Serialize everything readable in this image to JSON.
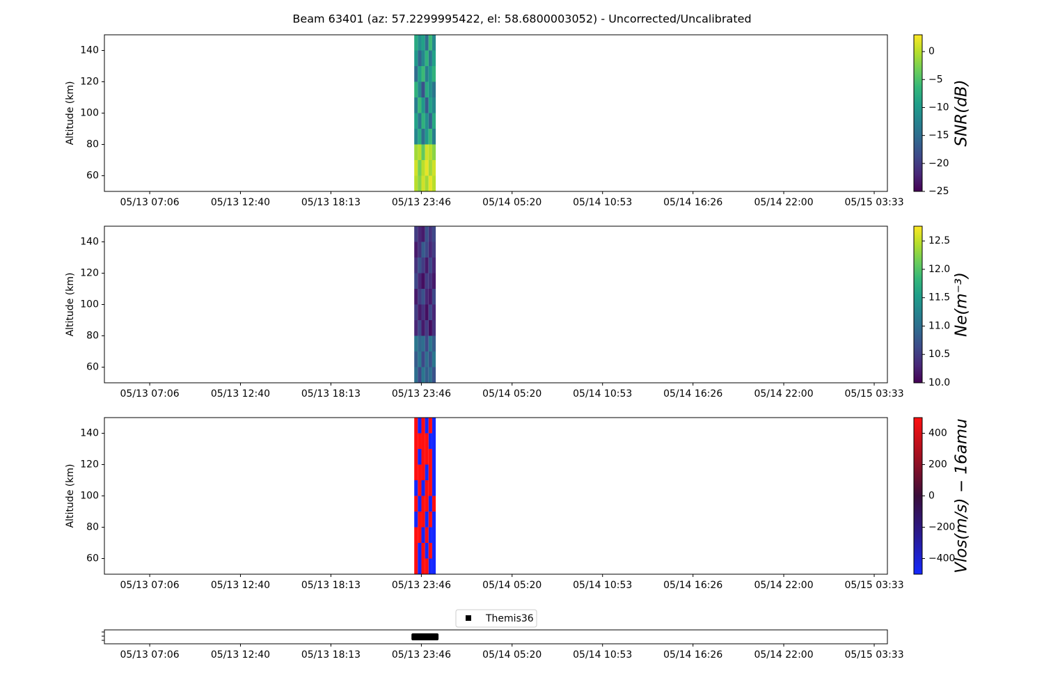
{
  "title": "Beam 63401 (az: 57.2299995422, el: 58.6800003052) - Uncorrected/Uncalibrated",
  "chart_data": [
    {
      "type": "heatmap",
      "ylabel": "Altitude (km)",
      "colorbar_label": "SNR(dB)",
      "colormap": [
        "#440154",
        "#482878",
        "#3e4989",
        "#31688e",
        "#26828e",
        "#1f9e89",
        "#35b779",
        "#6ece58",
        "#b5de2b",
        "#fde725"
      ],
      "xlim": [
        4.32,
        52.36
      ],
      "xticks": [
        {
          "value": 7.1,
          "label": "05/13 07:06"
        },
        {
          "value": 12.667,
          "label": "05/13 12:40"
        },
        {
          "value": 18.217,
          "label": "05/13 18:13"
        },
        {
          "value": 23.767,
          "label": "05/13 23:46"
        },
        {
          "value": 29.333,
          "label": "05/14 05:20"
        },
        {
          "value": 34.883,
          "label": "05/14 10:53"
        },
        {
          "value": 40.433,
          "label": "05/14 16:26"
        },
        {
          "value": 46.0,
          "label": "05/14 22:00"
        },
        {
          "value": 51.55,
          "label": "05/15 03:33"
        }
      ],
      "ylim": [
        50,
        150
      ],
      "yticks": [
        60,
        80,
        100,
        120,
        140
      ],
      "clim": [
        -25,
        3
      ],
      "cticks": [
        {
          "value": 0,
          "label": "0"
        },
        {
          "value": -5,
          "label": "−5"
        },
        {
          "value": -10,
          "label": "−10"
        },
        {
          "value": -15,
          "label": "−15"
        },
        {
          "value": -20,
          "label": "−20"
        },
        {
          "value": -25,
          "label": "−25"
        }
      ],
      "x": [
        23.33,
        23.55,
        23.77,
        23.99,
        24.21,
        24.43,
        24.65
      ],
      "y": [
        50,
        60,
        70,
        80,
        90,
        100,
        110,
        120,
        130,
        140,
        150
      ],
      "z": [
        [
          0,
          -2,
          1,
          -1,
          2,
          0
        ],
        [
          1,
          -3,
          0,
          2,
          -1,
          1
        ],
        [
          -1,
          0,
          -4,
          1,
          0,
          -2
        ],
        [
          -12,
          -8,
          -15,
          -10,
          -6,
          -13
        ],
        [
          -9,
          -14,
          -7,
          -11,
          -16,
          -8
        ],
        [
          -13,
          -6,
          -10,
          -17,
          -9,
          -12
        ],
        [
          -7,
          -12,
          -18,
          -8,
          -11,
          -14
        ],
        [
          -15,
          -9,
          -6,
          -13,
          -10,
          -7
        ],
        [
          -10,
          -16,
          -12,
          -7,
          -14,
          -9
        ],
        [
          -8,
          -11,
          -9,
          -15,
          -6,
          -12
        ]
      ]
    },
    {
      "type": "heatmap",
      "ylabel": "Altitude (km)",
      "colorbar_label": "Ne(m⁻³)",
      "colormap": [
        "#440154",
        "#482878",
        "#3e4989",
        "#31688e",
        "#26828e",
        "#1f9e89",
        "#35b779",
        "#6ece58",
        "#b5de2b",
        "#fde725"
      ],
      "xlim": [
        4.32,
        52.36
      ],
      "xticks": [
        {
          "value": 7.1,
          "label": "05/13 07:06"
        },
        {
          "value": 12.667,
          "label": "05/13 12:40"
        },
        {
          "value": 18.217,
          "label": "05/13 18:13"
        },
        {
          "value": 23.767,
          "label": "05/13 23:46"
        },
        {
          "value": 29.333,
          "label": "05/14 05:20"
        },
        {
          "value": 34.883,
          "label": "05/14 10:53"
        },
        {
          "value": 40.433,
          "label": "05/14 16:26"
        },
        {
          "value": 46.0,
          "label": "05/14 22:00"
        },
        {
          "value": 51.55,
          "label": "05/15 03:33"
        }
      ],
      "ylim": [
        50,
        150
      ],
      "yticks": [
        60,
        80,
        100,
        120,
        140
      ],
      "clim": [
        10.0,
        12.76
      ],
      "cticks": [
        {
          "value": 10,
          "label": "10.0"
        },
        10.5,
        {
          "value": 11,
          "label": "11.0"
        },
        11.5,
        {
          "value": 12,
          "label": "12.0"
        },
        12.5
      ],
      "x": [
        23.33,
        23.55,
        23.77,
        23.99,
        24.21,
        24.43,
        24.65
      ],
      "y": [
        50,
        60,
        70,
        80,
        90,
        100,
        110,
        120,
        130,
        140,
        150
      ],
      "z": [
        [
          11.0,
          10.6,
          11.1,
          10.8,
          11.0,
          10.7
        ],
        [
          10.8,
          11.1,
          10.6,
          11.0,
          10.7,
          11.1
        ],
        [
          11.1,
          10.9,
          11.0,
          10.6,
          11.1,
          10.8
        ],
        [
          10.3,
          10.6,
          10.2,
          10.5,
          10.1,
          10.4
        ],
        [
          10.5,
          10.2,
          10.4,
          10.1,
          10.6,
          10.3
        ],
        [
          10.2,
          10.5,
          10.7,
          10.3,
          10.2,
          10.6
        ],
        [
          10.6,
          10.3,
          10.1,
          10.5,
          10.4,
          10.2
        ],
        [
          10.4,
          10.7,
          10.5,
          10.2,
          10.6,
          10.3
        ],
        [
          10.2,
          10.4,
          10.8,
          10.6,
          10.3,
          10.5
        ],
        [
          10.5,
          10.3,
          10.2,
          10.7,
          10.4,
          10.6
        ]
      ]
    },
    {
      "type": "heatmap",
      "ylabel": "Altitude (km)",
      "colorbar_label": "Vlos(m/s) − 16amu",
      "colormap": [
        "#1428ff",
        "#2a1a90",
        "#3a0e3a",
        "#a01020",
        "#ff1010"
      ],
      "xlim": [
        4.32,
        52.36
      ],
      "xticks": [
        {
          "value": 7.1,
          "label": "05/13 07:06"
        },
        {
          "value": 12.667,
          "label": "05/13 12:40"
        },
        {
          "value": 18.217,
          "label": "05/13 18:13"
        },
        {
          "value": 23.767,
          "label": "05/13 23:46"
        },
        {
          "value": 29.333,
          "label": "05/14 05:20"
        },
        {
          "value": 34.883,
          "label": "05/14 10:53"
        },
        {
          "value": 40.433,
          "label": "05/14 16:26"
        },
        {
          "value": 46.0,
          "label": "05/14 22:00"
        },
        {
          "value": 51.55,
          "label": "05/15 03:33"
        }
      ],
      "ylim": [
        50,
        150
      ],
      "yticks": [
        60,
        80,
        100,
        120,
        140
      ],
      "clim": [
        -500,
        500
      ],
      "cticks": [
        400,
        200,
        0,
        {
          "value": -200,
          "label": "−200"
        },
        {
          "value": -400,
          "label": "−400"
        }
      ],
      "x": [
        23.33,
        23.55,
        23.77,
        23.99,
        24.21,
        24.43,
        24.65
      ],
      "y": [
        50,
        60,
        70,
        80,
        90,
        100,
        110,
        120,
        130,
        140,
        150
      ],
      "z": [
        [
          500,
          -500,
          500,
          500,
          -500,
          -500
        ],
        [
          500,
          -500,
          500,
          -500,
          500,
          -500
        ],
        [
          500,
          500,
          -500,
          500,
          -500,
          -500
        ],
        [
          -500,
          500,
          500,
          -500,
          500,
          -500
        ],
        [
          500,
          -500,
          500,
          500,
          -500,
          500
        ],
        [
          -500,
          500,
          -500,
          500,
          500,
          -500
        ],
        [
          500,
          500,
          500,
          -500,
          500,
          -500
        ],
        [
          500,
          -500,
          500,
          500,
          500,
          -500
        ],
        [
          500,
          500,
          500,
          500,
          -500,
          -500
        ],
        [
          500,
          -500,
          500,
          -500,
          500,
          -500
        ]
      ]
    },
    {
      "type": "timeline",
      "xlim": [
        4.32,
        52.36
      ],
      "xticks": [
        {
          "value": 7.1,
          "label": "05/13 07:06"
        },
        {
          "value": 12.667,
          "label": "05/13 12:40"
        },
        {
          "value": 18.217,
          "label": "05/13 18:13"
        },
        {
          "value": 23.767,
          "label": "05/13 23:46"
        },
        {
          "value": 29.333,
          "label": "05/14 05:20"
        },
        {
          "value": 34.883,
          "label": "05/14 10:53"
        },
        {
          "value": 40.433,
          "label": "05/14 16:26"
        },
        {
          "value": 46.0,
          "label": "05/14 22:00"
        },
        {
          "value": 51.55,
          "label": "05/15 03:33"
        }
      ],
      "series": [
        {
          "name": "Themis36",
          "color": "#000000",
          "start": 23.16,
          "end": 24.82
        }
      ]
    }
  ]
}
